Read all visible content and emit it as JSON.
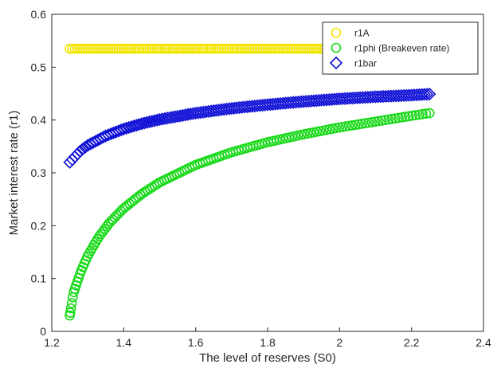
{
  "chart_data": {
    "type": "scatter",
    "xlabel": "The level of reserves (S0)",
    "ylabel": "Market interest rate (r1)",
    "xlim": [
      1.2,
      2.4
    ],
    "ylim": [
      0,
      0.6
    ],
    "xticks": [
      "1.2",
      "1.4",
      "1.6",
      "1.8",
      "2",
      "2.2",
      "2.4"
    ],
    "yticks": [
      "0",
      "0.1",
      "0.2",
      "0.3",
      "0.4",
      "0.5",
      "0.6"
    ],
    "legend_position": "top-right",
    "grid": false,
    "series": [
      {
        "name": "r1A",
        "marker": "circle",
        "color": "#f2e600",
        "x": [
          1.25,
          1.5,
          1.75,
          2.0,
          2.25
        ],
        "y": [
          0.535,
          0.535,
          0.535,
          0.535,
          0.535
        ]
      },
      {
        "name": "r1phi (Breakeven rate)",
        "marker": "circle",
        "color": "#16d916",
        "x": [
          1.25,
          1.26,
          1.28,
          1.3,
          1.33,
          1.36,
          1.4,
          1.45,
          1.5,
          1.6,
          1.7,
          1.8,
          1.9,
          2.0,
          2.1,
          2.2,
          2.25
        ],
        "y": [
          0.03,
          0.072,
          0.112,
          0.143,
          0.178,
          0.205,
          0.233,
          0.26,
          0.282,
          0.315,
          0.339,
          0.358,
          0.373,
          0.386,
          0.397,
          0.408,
          0.413
        ]
      },
      {
        "name": "r1bar",
        "marker": "diamond",
        "color": "#1010d6",
        "x": [
          1.25,
          1.28,
          1.3,
          1.35,
          1.4,
          1.45,
          1.5,
          1.6,
          1.7,
          1.8,
          1.9,
          2.0,
          2.1,
          2.2,
          2.25
        ],
        "y": [
          0.32,
          0.342,
          0.352,
          0.37,
          0.383,
          0.393,
          0.401,
          0.413,
          0.422,
          0.429,
          0.435,
          0.44,
          0.444,
          0.447,
          0.449
        ]
      }
    ]
  }
}
